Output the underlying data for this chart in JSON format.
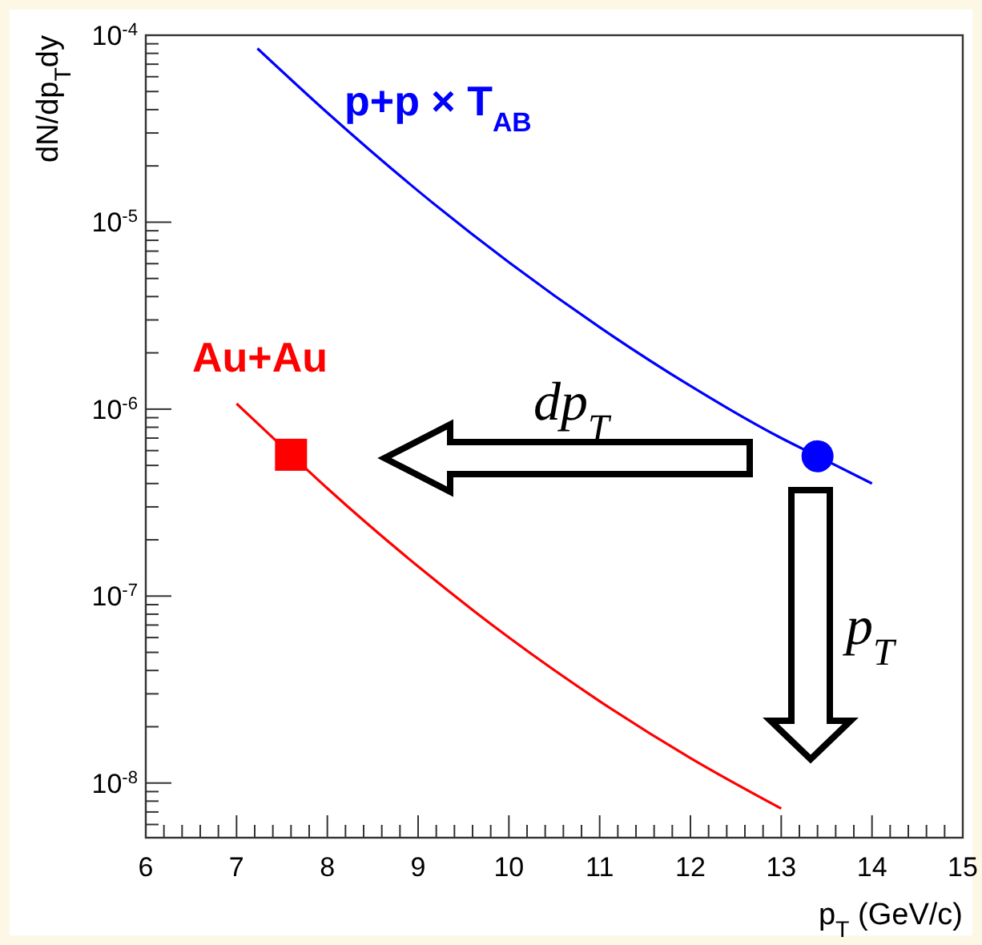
{
  "chart_data": {
    "type": "line",
    "xlabel": "p$_{T}$ (GeV/c)",
    "ylabel": "dN/dp$_{T}$dy",
    "log": "y",
    "grid": false,
    "legend": false,
    "xlim": [
      6,
      15
    ],
    "ylim": [
      5.1e-09,
      0.0001
    ],
    "xticks": [
      6,
      {
        "value": 6.2,
        "label": null
      },
      {
        "value": 6.4,
        "label": null
      },
      {
        "value": 6.6,
        "label": null
      },
      {
        "value": 6.8,
        "label": null
      },
      7,
      {
        "value": 7.2,
        "label": null
      },
      {
        "value": 7.4,
        "label": null
      },
      {
        "value": 7.6,
        "label": null
      },
      {
        "value": 7.8,
        "label": null
      },
      8,
      {
        "value": 8.2,
        "label": null
      },
      {
        "value": 8.4,
        "label": null
      },
      {
        "value": 8.6,
        "label": null
      },
      {
        "value": 8.8,
        "label": null
      },
      9,
      {
        "value": 9.2,
        "label": null
      },
      {
        "value": 9.4,
        "label": null
      },
      {
        "value": 9.6,
        "label": null
      },
      {
        "value": 9.8,
        "label": null
      },
      10,
      {
        "value": 10.2,
        "label": null
      },
      {
        "value": 10.4,
        "label": null
      },
      {
        "value": 10.6,
        "label": null
      },
      {
        "value": 10.8,
        "label": null
      },
      11,
      {
        "value": 11.2,
        "label": null
      },
      {
        "value": 11.4,
        "label": null
      },
      {
        "value": 11.6,
        "label": null
      },
      {
        "value": 11.8,
        "label": null
      },
      12,
      {
        "value": 12.2,
        "label": null
      },
      {
        "value": 12.4,
        "label": null
      },
      {
        "value": 12.6,
        "label": null
      },
      {
        "value": 12.8,
        "label": null
      },
      13,
      {
        "value": 13.2,
        "label": null
      },
      {
        "value": 13.4,
        "label": null
      },
      {
        "value": 13.6,
        "label": null
      },
      {
        "value": 13.8,
        "label": null
      },
      14,
      {
        "value": 14.2,
        "label": null
      },
      {
        "value": 14.4,
        "label": null
      },
      {
        "value": 14.6,
        "label": null
      },
      {
        "value": 14.8,
        "label": null
      },
      15
    ],
    "yticks": [
      {
        "value": 6e-09,
        "label": null
      },
      {
        "value": 7e-09,
        "label": null
      },
      {
        "value": 8e-09,
        "label": null
      },
      {
        "value": 9e-09,
        "label": null
      },
      {
        "value": 1e-08,
        "label": "10$^{-8}$"
      },
      {
        "value": 2e-08,
        "label": null
      },
      {
        "value": 3e-08,
        "label": null
      },
      {
        "value": 4e-08,
        "label": null
      },
      {
        "value": 5e-08,
        "label": null
      },
      {
        "value": 6e-08,
        "label": null
      },
      {
        "value": 7e-08,
        "label": null
      },
      {
        "value": 8e-08,
        "label": null
      },
      {
        "value": 9e-08,
        "label": null
      },
      {
        "value": 1e-07,
        "label": "10$^{-7}$"
      },
      {
        "value": 2e-07,
        "label": null
      },
      {
        "value": 3e-07,
        "label": null
      },
      {
        "value": 4e-07,
        "label": null
      },
      {
        "value": 5e-07,
        "label": null
      },
      {
        "value": 6e-07,
        "label": null
      },
      {
        "value": 7e-07,
        "label": null
      },
      {
        "value": 8e-07,
        "label": null
      },
      {
        "value": 9e-07,
        "label": null
      },
      {
        "value": 1e-06,
        "label": "10$^{-6}$"
      },
      {
        "value": 2e-06,
        "label": null
      },
      {
        "value": 3e-06,
        "label": null
      },
      {
        "value": 4e-06,
        "label": null
      },
      {
        "value": 5e-06,
        "label": null
      },
      {
        "value": 6e-06,
        "label": null
      },
      {
        "value": 7e-06,
        "label": null
      },
      {
        "value": 8e-06,
        "label": null
      },
      {
        "value": 9e-06,
        "label": null
      },
      {
        "value": 1e-05,
        "label": "10$^{-5}$"
      },
      {
        "value": 2e-05,
        "label": null
      },
      {
        "value": 3e-05,
        "label": null
      },
      {
        "value": 4e-05,
        "label": null
      },
      {
        "value": 5e-05,
        "label": null
      },
      {
        "value": 6e-05,
        "label": null
      },
      {
        "value": 7e-05,
        "label": null
      },
      {
        "value": 8e-05,
        "label": null
      },
      {
        "value": 9e-05,
        "label": null
      },
      {
        "value": 0.0001,
        "label": "10$^{-4}$"
      }
    ],
    "series": [
      {
        "name": "p+p × T$_{AB}$",
        "color": "#0000ff",
        "x": [
          7.23,
          8,
          9,
          10,
          11,
          12,
          13,
          13.4,
          14
        ],
        "values": [
          8.5e-05,
          3.85e-05,
          1.47e-05,
          6.1e-06,
          2.74e-06,
          1.33e-06,
          7e-07,
          5.6e-07,
          4e-07
        ]
      },
      {
        "name": "Au+Au",
        "color": "#ff0000",
        "x": [
          7,
          7.6,
          8,
          9,
          10,
          11,
          12,
          13
        ],
        "values": [
          1.07e-06,
          5.7e-07,
          3.77e-07,
          1.44e-07,
          6e-08,
          2.74e-08,
          1.36e-08,
          7.3e-09
        ]
      },
      {
        "type": "scatter",
        "marker": "circle",
        "color": "#0000ff",
        "x": [
          13.4
        ],
        "values": [
          5.6e-07
        ]
      },
      {
        "type": "scatter",
        "marker": "square",
        "color": "#ff0000",
        "x": [
          7.6
        ],
        "values": [
          5.7e-07
        ]
      }
    ],
    "annotations": [
      "dp$_{T}$",
      "p$_{T}$"
    ]
  }
}
